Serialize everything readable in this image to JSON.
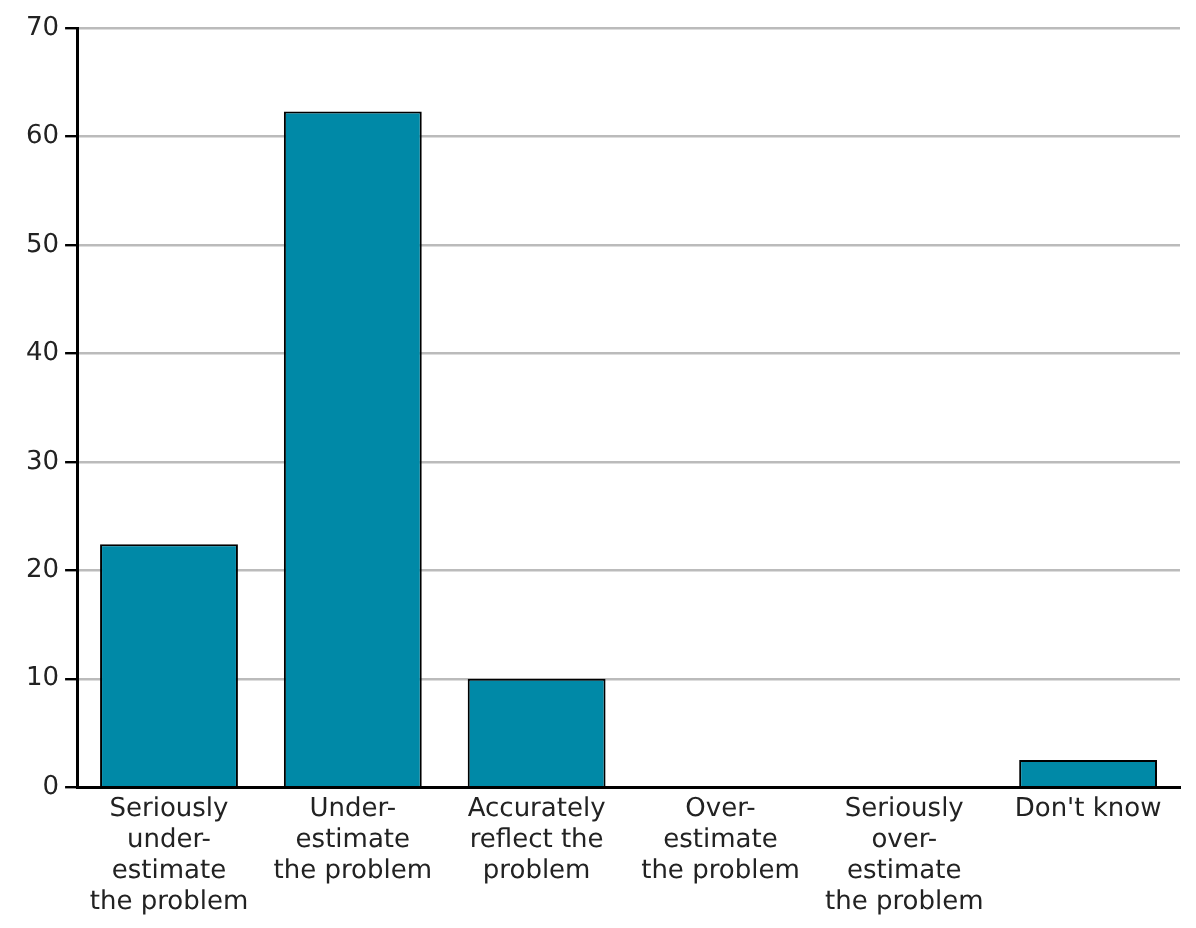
{
  "chart_data": {
    "type": "bar",
    "categories": [
      "Seriously\nunder-\nestimate\nthe problem",
      "Under-\nestimate\nthe problem",
      "Accurately\nreflect the\nproblem",
      "Over-\nestimate\nthe problem",
      "Seriously\nover-\nestimate\nthe problem",
      "Don't know"
    ],
    "values": [
      22.4,
      62.3,
      10,
      0,
      0,
      2.5
    ],
    "color": "#0089a7",
    "ylim": [
      0,
      70
    ],
    "yticks": [
      0,
      10,
      20,
      30,
      40,
      50,
      60,
      70
    ],
    "grid": "y",
    "legend": false
  }
}
